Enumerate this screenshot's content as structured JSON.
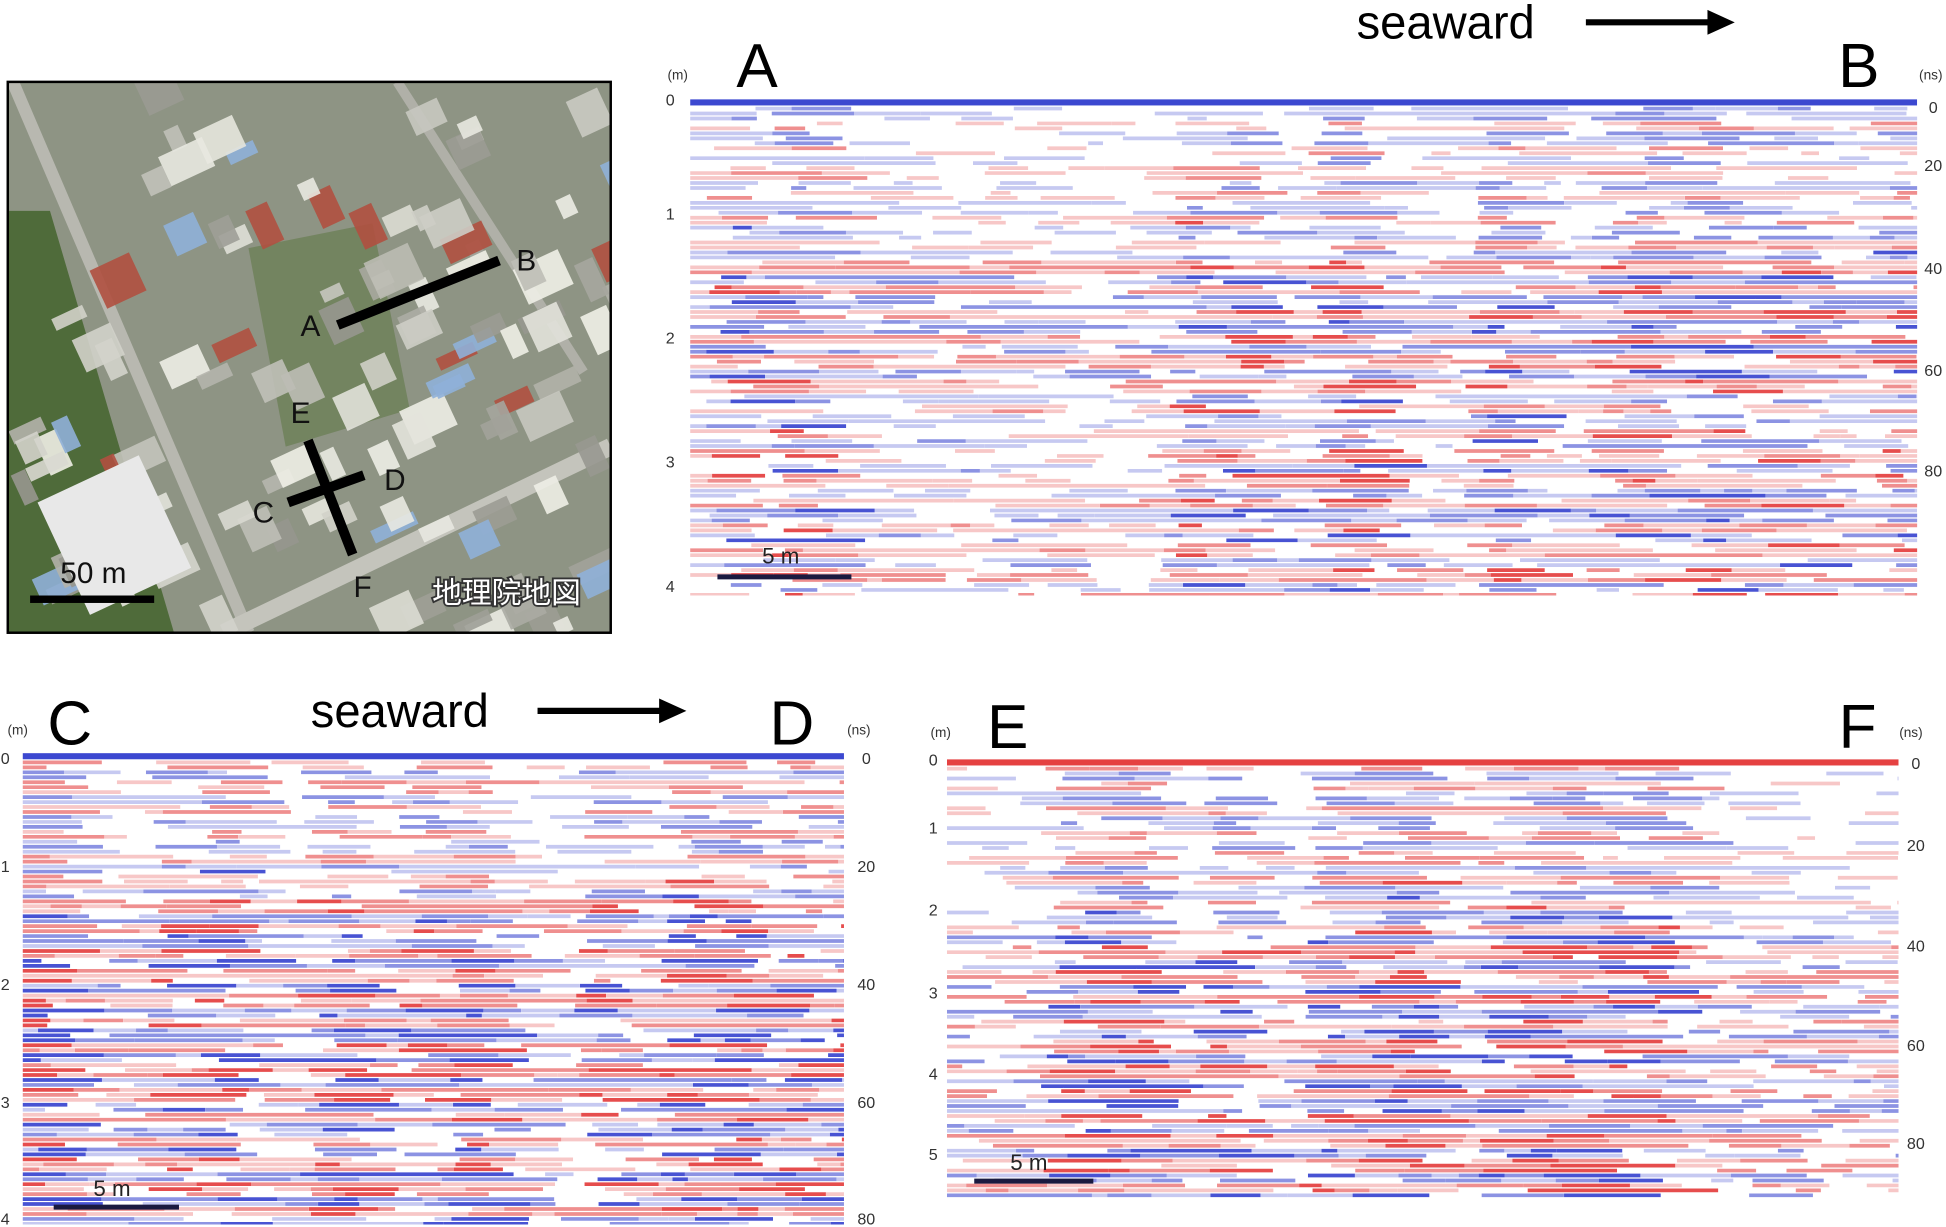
{
  "map": {
    "labels": [
      "A",
      "B",
      "C",
      "D",
      "E",
      "F"
    ],
    "scale_bar": "50 m",
    "credit": "地理院地図"
  },
  "profiles": [
    {
      "start": "A",
      "end": "B",
      "direction": "seaward",
      "depth_unit": "(m)",
      "depth_ticks": [
        0,
        1,
        2,
        3,
        4
      ],
      "time_unit": "(ns)",
      "time_ticks": [
        0,
        20,
        40,
        60,
        80
      ],
      "scale_bar": "5 m"
    },
    {
      "start": "C",
      "end": "D",
      "direction": "seaward",
      "depth_unit": "(m)",
      "depth_ticks": [
        0,
        1,
        2,
        3,
        4
      ],
      "time_unit": "(ns)",
      "time_ticks": [
        0,
        20,
        40,
        60,
        80
      ],
      "scale_bar": "5 m"
    },
    {
      "start": "E",
      "end": "F",
      "depth_unit": "(m)",
      "depth_ticks": [
        0,
        1,
        2,
        3,
        4,
        5
      ],
      "time_unit": "(ns)",
      "time_ticks": [
        0,
        20,
        40,
        60,
        80
      ],
      "scale_bar": "5 m"
    }
  ]
}
